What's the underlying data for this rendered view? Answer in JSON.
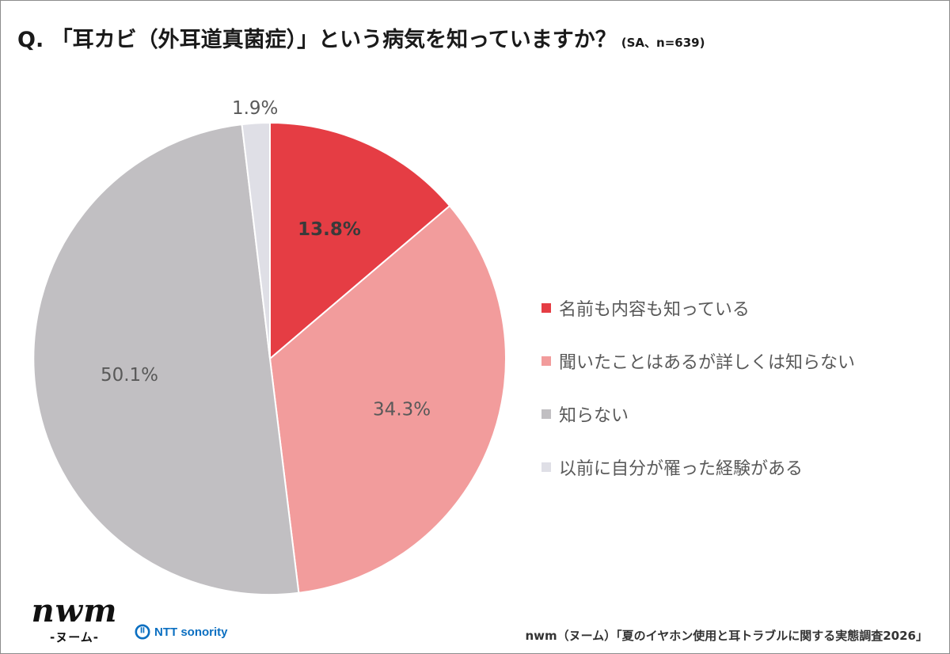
{
  "title": {
    "main": "Q. 「耳カビ（外耳道真菌症）」という病気を知っていますか？",
    "sub": "(SA、n=639)"
  },
  "chart_data": {
    "type": "pie",
    "categories": [
      "名前も内容も知っている",
      "聞いたことはあるが詳しくは知らない",
      "知らない",
      "以前に自分が罹った経験がある"
    ],
    "values": [
      13.8,
      34.3,
      50.1,
      1.9
    ],
    "value_labels": [
      "13.8%",
      "34.3%",
      "50.1%",
      "1.9%"
    ],
    "colors": [
      "#e53d44",
      "#f29c9c",
      "#c1bfc2",
      "#dfdfe6"
    ],
    "label_colors": [
      "#3a3a3a",
      "#595959",
      "#595959",
      "#595959"
    ],
    "label_bold": [
      true,
      false,
      false,
      false
    ],
    "start_angle_deg": 0,
    "direction": "clockwise",
    "legend_position": "right"
  },
  "legend": {
    "items": [
      {
        "label": "名前も内容も知っている",
        "color": "#e53d44"
      },
      {
        "label": "聞いたことはあるが詳しくは知らない",
        "color": "#f29c9c"
      },
      {
        "label": "知らない",
        "color": "#c1bfc2"
      },
      {
        "label": "以前に自分が罹った経験がある",
        "color": "#dfdfe6"
      }
    ]
  },
  "logos": {
    "nwm_word": "nwm",
    "nwm_kana": "-ヌーム-",
    "ntt": "NTT sonority"
  },
  "source": "nwm（ヌーム）「夏のイヤホン使用と耳トラブルに関する実態調査2026」"
}
